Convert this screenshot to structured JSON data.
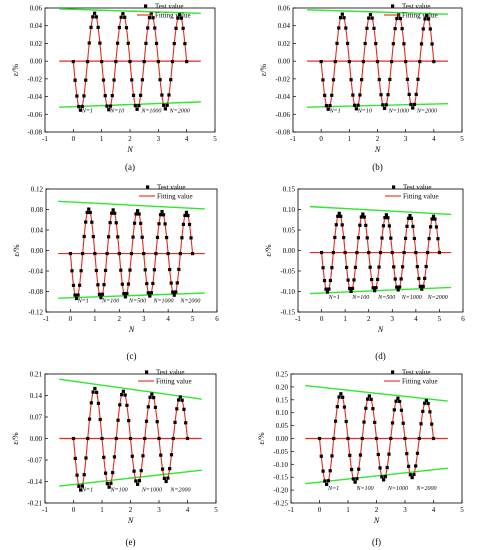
{
  "figure": {
    "legend_test": "Test value",
    "legend_fit": "Fitting value",
    "colors": {
      "points": "#000000",
      "fit": "#e8291c",
      "envelope": "#2ee82e"
    }
  },
  "chart_data": [
    {
      "type": "line",
      "caption": "(a)",
      "xlabel": "N",
      "ylabel": "ε/%",
      "xlim": [
        -1,
        5
      ],
      "ylim": [
        -0.08,
        0.06
      ],
      "xticks": [
        "-1",
        "0",
        "1",
        "2",
        "3",
        "4",
        "5"
      ],
      "yticks": [
        "-0.08",
        "-0.06",
        "-0.04",
        "-0.02",
        "0.00",
        "0.02",
        "0.04",
        "0.06"
      ],
      "cycles": 4,
      "x_start": 0,
      "x_end": 4,
      "amp_start": 0.055,
      "amp_end": 0.053,
      "mean": -0.0005,
      "envelope_upper": [
        [
          -0.5,
          0.059
        ],
        [
          4.5,
          0.054
        ]
      ],
      "envelope_lower": [
        [
          -0.5,
          -0.052
        ],
        [
          4.5,
          -0.046
        ]
      ],
      "mean_line": [
        [
          -0.5,
          0.0
        ],
        [
          4.5,
          0.0
        ]
      ],
      "annotations": [
        {
          "text": "N=1",
          "x": 0.3,
          "y": -0.058
        },
        {
          "text": "N=10",
          "x": 1.3,
          "y": -0.058
        },
        {
          "text": "N=1000",
          "x": 2.4,
          "y": -0.058
        },
        {
          "text": "N=2000",
          "x": 3.4,
          "y": -0.058
        }
      ]
    },
    {
      "type": "line",
      "caption": "(b)",
      "xlabel": "N",
      "ylabel": "ε/%",
      "xlim": [
        -1,
        5
      ],
      "ylim": [
        -0.08,
        0.06
      ],
      "xticks": [
        "-1",
        "0",
        "1",
        "2",
        "3",
        "4",
        "5"
      ],
      "yticks": [
        "-0.08",
        "-0.06",
        "-0.04",
        "-0.02",
        "0.00",
        "0.02",
        "0.04",
        "0.06"
      ],
      "cycles": 4,
      "x_start": 0,
      "x_end": 4,
      "amp_start": 0.054,
      "amp_end": 0.052,
      "mean": -0.0005,
      "envelope_upper": [
        [
          -0.5,
          0.058
        ],
        [
          4.5,
          0.053
        ]
      ],
      "envelope_lower": [
        [
          -0.5,
          -0.052
        ],
        [
          4.5,
          -0.048
        ]
      ],
      "mean_line": [
        [
          -0.5,
          0.0
        ],
        [
          4.5,
          0.0
        ]
      ],
      "annotations": [
        {
          "text": "N=1",
          "x": 0.3,
          "y": -0.058
        },
        {
          "text": "N=10",
          "x": 1.3,
          "y": -0.058
        },
        {
          "text": "N=1000",
          "x": 2.4,
          "y": -0.058
        },
        {
          "text": "N=2000",
          "x": 3.4,
          "y": -0.058
        }
      ]
    },
    {
      "type": "line",
      "caption": "(c)",
      "xlabel": "N",
      "ylabel": "ε/%",
      "xlim": [
        -1,
        6
      ],
      "ylim": [
        -0.12,
        0.12
      ],
      "xticks": [
        "-1",
        "0",
        "1",
        "2",
        "3",
        "4",
        "5",
        "6"
      ],
      "yticks": [
        "-0.12",
        "-0.08",
        "-0.04",
        "0.00",
        "0.04",
        "0.08",
        "0.12"
      ],
      "cycles": 5,
      "x_start": 0,
      "x_end": 5,
      "amp_start": 0.088,
      "amp_end": 0.08,
      "mean": -0.006,
      "envelope_upper": [
        [
          -0.5,
          0.096
        ],
        [
          5.5,
          0.081
        ]
      ],
      "envelope_lower": [
        [
          -0.5,
          -0.093
        ],
        [
          5.5,
          -0.083
        ]
      ],
      "mean_line": [
        [
          -0.5,
          -0.006
        ],
        [
          5.5,
          -0.006
        ]
      ],
      "annotations": [
        {
          "text": "N=1",
          "x": 0.3,
          "y": -0.101
        },
        {
          "text": "N=100",
          "x": 1.3,
          "y": -0.101
        },
        {
          "text": "N=500",
          "x": 2.4,
          "y": -0.101
        },
        {
          "text": "N=1000",
          "x": 3.4,
          "y": -0.101
        },
        {
          "text": "N=2000",
          "x": 4.5,
          "y": -0.101
        }
      ]
    },
    {
      "type": "line",
      "caption": "(d)",
      "xlabel": "N",
      "ylabel": "ε/%",
      "xlim": [
        -1,
        6
      ],
      "ylim": [
        -0.15,
        0.15
      ],
      "xticks": [
        "-1",
        "0",
        "1",
        "2",
        "3",
        "4",
        "5",
        "6"
      ],
      "yticks": [
        "-0.15",
        "-0.10",
        "-0.05",
        "0.00",
        "0.05",
        "0.10",
        "0.15"
      ],
      "cycles": 5,
      "x_start": 0,
      "x_end": 5,
      "amp_start": 0.097,
      "amp_end": 0.088,
      "mean": -0.005,
      "envelope_upper": [
        [
          -0.5,
          0.107
        ],
        [
          5.5,
          0.088
        ]
      ],
      "envelope_lower": [
        [
          -0.5,
          -0.105
        ],
        [
          5.5,
          -0.09
        ]
      ],
      "mean_line": [
        [
          -0.5,
          -0.005
        ],
        [
          5.5,
          -0.005
        ]
      ],
      "annotations": [
        {
          "text": "N=1",
          "x": 0.3,
          "y": -0.118
        },
        {
          "text": "N=100",
          "x": 1.3,
          "y": -0.118
        },
        {
          "text": "N=500",
          "x": 2.4,
          "y": -0.118
        },
        {
          "text": "N=1000",
          "x": 3.4,
          "y": -0.118
        },
        {
          "text": "N=2000",
          "x": 4.5,
          "y": -0.118
        }
      ]
    },
    {
      "type": "line",
      "caption": "(e)",
      "xlabel": "N",
      "ylabel": "ε/%",
      "xlim": [
        -1,
        5
      ],
      "ylim": [
        -0.21,
        0.21
      ],
      "xticks": [
        "-1",
        "0",
        "1",
        "2",
        "3",
        "4",
        "5"
      ],
      "yticks": [
        "-0.21",
        "-0.14",
        "-0.07",
        "0.00",
        "0.07",
        "0.14",
        "0.21"
      ],
      "cycles": 4,
      "x_start": 0,
      "x_end": 4,
      "amp_start": 0.17,
      "amp_end": 0.133,
      "mean": 0.0,
      "envelope_upper": [
        [
          -0.5,
          0.193
        ],
        [
          4.5,
          0.128
        ]
      ],
      "envelope_lower": [
        [
          -0.5,
          -0.155
        ],
        [
          4.5,
          -0.103
        ]
      ],
      "mean_line": [
        [
          -0.5,
          0.0
        ],
        [
          4.5,
          0.0
        ]
      ],
      "annotations": [
        {
          "text": "N=1",
          "x": 0.3,
          "y": -0.172
        },
        {
          "text": "N=100",
          "x": 1.3,
          "y": -0.172
        },
        {
          "text": "N=1000",
          "x": 2.4,
          "y": -0.172
        },
        {
          "text": "N=2000",
          "x": 3.4,
          "y": -0.172
        }
      ]
    },
    {
      "type": "line",
      "caption": "(f)",
      "xlabel": "N",
      "ylabel": "ε/%",
      "xlim": [
        -1,
        5
      ],
      "ylim": [
        -0.25,
        0.25
      ],
      "xticks": [
        "-1",
        "0",
        "1",
        "2",
        "3",
        "4",
        "5"
      ],
      "yticks": [
        "-0.25",
        "-0.20",
        "-0.15",
        "-0.10",
        "-0.05",
        "0.00",
        "0.05",
        "0.10",
        "0.15",
        "0.20",
        "0.25"
      ],
      "cycles": 4,
      "x_start": 0,
      "x_end": 4,
      "amp_start": 0.18,
      "amp_end": 0.145,
      "mean": 0.0,
      "envelope_upper": [
        [
          -0.5,
          0.205
        ],
        [
          4.5,
          0.145
        ]
      ],
      "envelope_lower": [
        [
          -0.5,
          -0.175
        ],
        [
          4.5,
          -0.115
        ]
      ],
      "mean_line": [
        [
          -0.5,
          0.0
        ],
        [
          4.5,
          0.0
        ]
      ],
      "annotations": [
        {
          "text": "N=1",
          "x": 0.3,
          "y": -0.2
        },
        {
          "text": "N=100",
          "x": 1.3,
          "y": -0.2
        },
        {
          "text": "N=1000",
          "x": 2.4,
          "y": -0.2
        },
        {
          "text": "N=2000",
          "x": 3.4,
          "y": -0.2
        }
      ]
    }
  ]
}
